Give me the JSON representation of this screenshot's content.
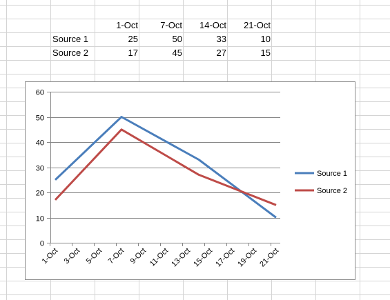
{
  "sheet": {
    "headers": [
      "1-Oct",
      "7-Oct",
      "14-Oct",
      "21-Oct"
    ],
    "rows": [
      {
        "label": "Source 1",
        "values": [
          "25",
          "50",
          "33",
          "10"
        ]
      },
      {
        "label": "Source 2",
        "values": [
          "17",
          "45",
          "27",
          "15"
        ]
      }
    ]
  },
  "chart_data": {
    "type": "line",
    "x": [
      "1-Oct",
      "3-Oct",
      "5-Oct",
      "7-Oct",
      "9-Oct",
      "11-Oct",
      "13-Oct",
      "15-Oct",
      "17-Oct",
      "19-Oct",
      "21-Oct"
    ],
    "x_days": [
      1,
      7,
      14,
      21
    ],
    "series": [
      {
        "name": "Source 1",
        "color": "#4a7ebb",
        "points": [
          {
            "x": "1-Oct",
            "y": 25
          },
          {
            "x": "7-Oct",
            "y": 50
          },
          {
            "x": "14-Oct",
            "y": 33
          },
          {
            "x": "21-Oct",
            "y": 10
          }
        ]
      },
      {
        "name": "Source 2",
        "color": "#be4b48",
        "points": [
          {
            "x": "1-Oct",
            "y": 17
          },
          {
            "x": "7-Oct",
            "y": 45
          },
          {
            "x": "14-Oct",
            "y": 27
          },
          {
            "x": "21-Oct",
            "y": 15
          }
        ]
      }
    ],
    "yticks": [
      "0",
      "10",
      "20",
      "30",
      "40",
      "50",
      "60"
    ],
    "ylim": [
      0,
      60
    ],
    "xlim": [
      "1-Oct",
      "21-Oct"
    ],
    "grid": "horizontal",
    "legend": "right",
    "title": "",
    "xlabel": "",
    "ylabel": ""
  }
}
